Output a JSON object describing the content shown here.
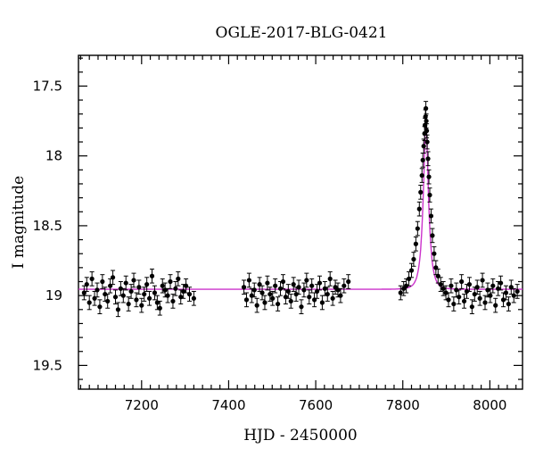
{
  "chart_data": {
    "type": "scatter",
    "title": "OGLE-2017-BLG-0421",
    "xlabel": "HJD - 2450000",
    "ylabel": "I magnitude",
    "xlim": [
      7055,
      8075
    ],
    "ylim": [
      19.67,
      17.28
    ],
    "y_inverted": true,
    "grid": false,
    "x_ticks": [
      7200,
      7400,
      7600,
      7800,
      8000
    ],
    "x_tick_labels": [
      "7200",
      "7400",
      "7600",
      "7800",
      "8000"
    ],
    "y_ticks": [
      17.5,
      18,
      18.5,
      19,
      19.5
    ],
    "y_tick_labels": [
      "17.5",
      "18",
      "18.5",
      "19",
      "19.5"
    ],
    "model": {
      "name": "model",
      "color": "#cc33cc",
      "baseline_mag": 18.955,
      "peak_mag": 17.75,
      "t0": 7853,
      "tE": 12
    },
    "observing_seasons": [
      {
        "start": 7065,
        "end": 7330
      },
      {
        "start": 7430,
        "end": 7680
      },
      {
        "start": 7790,
        "end": 8070
      }
    ],
    "points_x": [
      7068,
      7074,
      7080,
      7086,
      7092,
      7098,
      7104,
      7110,
      7116,
      7122,
      7128,
      7134,
      7140,
      7146,
      7152,
      7158,
      7164,
      7170,
      7176,
      7182,
      7188,
      7194,
      7200,
      7206,
      7212,
      7218,
      7224,
      7230,
      7236,
      7242,
      7248,
      7254,
      7260,
      7266,
      7272,
      7278,
      7284,
      7290,
      7296,
      7302,
      7310,
      7320,
      7435,
      7441,
      7447,
      7453,
      7459,
      7465,
      7471,
      7477,
      7483,
      7489,
      7495,
      7501,
      7507,
      7513,
      7519,
      7525,
      7531,
      7537,
      7543,
      7549,
      7555,
      7561,
      7567,
      7573,
      7579,
      7585,
      7591,
      7597,
      7603,
      7609,
      7615,
      7621,
      7627,
      7633,
      7639,
      7645,
      7651,
      7657,
      7665,
      7675,
      7795,
      7802,
      7808,
      7814,
      7820,
      7825,
      7830,
      7834,
      7838,
      7841,
      7844,
      7846,
      7848,
      7850,
      7851,
      7852,
      7853,
      7854,
      7855,
      7856,
      7858,
      7860,
      7862,
      7865,
      7868,
      7872,
      7876,
      7881,
      7887,
      7893,
      7899,
      7905,
      7911,
      7917,
      7923,
      7929,
      7935,
      7941,
      7947,
      7953,
      7959,
      7965,
      7971,
      7977,
      7983,
      7989,
      7995,
      8001,
      8007,
      8013,
      8019,
      8025,
      8031,
      8037,
      8043,
      8049,
      8055,
      8063
    ],
    "points_y": [
      18.98,
      18.92,
      19.05,
      18.88,
      19.02,
      18.96,
      19.08,
      18.9,
      18.99,
      19.04,
      18.93,
      18.87,
      19.01,
      19.1,
      18.95,
      19.0,
      18.91,
      19.06,
      18.97,
      18.89,
      19.03,
      18.94,
      19.07,
      18.99,
      18.92,
      19.02,
      18.86,
      18.98,
      19.05,
      19.09,
      18.93,
      18.96,
      19.0,
      18.9,
      19.04,
      18.95,
      18.88,
      19.01,
      18.97,
      18.93,
      18.99,
      19.02,
      18.94,
      19.03,
      18.89,
      19.0,
      18.96,
      19.07,
      18.92,
      18.98,
      19.05,
      18.91,
      18.99,
      19.02,
      18.93,
      19.06,
      18.95,
      18.9,
      19.01,
      18.97,
      19.04,
      18.92,
      18.99,
      18.94,
      19.08,
      18.96,
      18.89,
      19.01,
      18.93,
      19.03,
      18.97,
      18.91,
      19.05,
      18.95,
      18.99,
      18.88,
      19.02,
      18.94,
      18.96,
      19.0,
      18.93,
      18.9,
      18.98,
      18.95,
      18.93,
      18.88,
      18.82,
      18.74,
      18.63,
      18.52,
      18.38,
      18.26,
      18.14,
      18.03,
      17.93,
      17.84,
      17.78,
      17.72,
      17.66,
      17.75,
      17.82,
      17.9,
      18.02,
      18.15,
      18.28,
      18.43,
      18.57,
      18.7,
      18.8,
      18.86,
      18.92,
      18.95,
      18.98,
      19.03,
      18.93,
      19.06,
      18.96,
      19.01,
      18.9,
      19.04,
      18.97,
      18.92,
      19.08,
      18.99,
      18.94,
      19.02,
      18.89,
      19.05,
      18.96,
      19.0,
      18.93,
      19.07,
      18.95,
      18.91,
      19.03,
      18.98,
      19.06,
      18.94,
      19.0,
      18.97
    ],
    "points_err": 0.05
  }
}
